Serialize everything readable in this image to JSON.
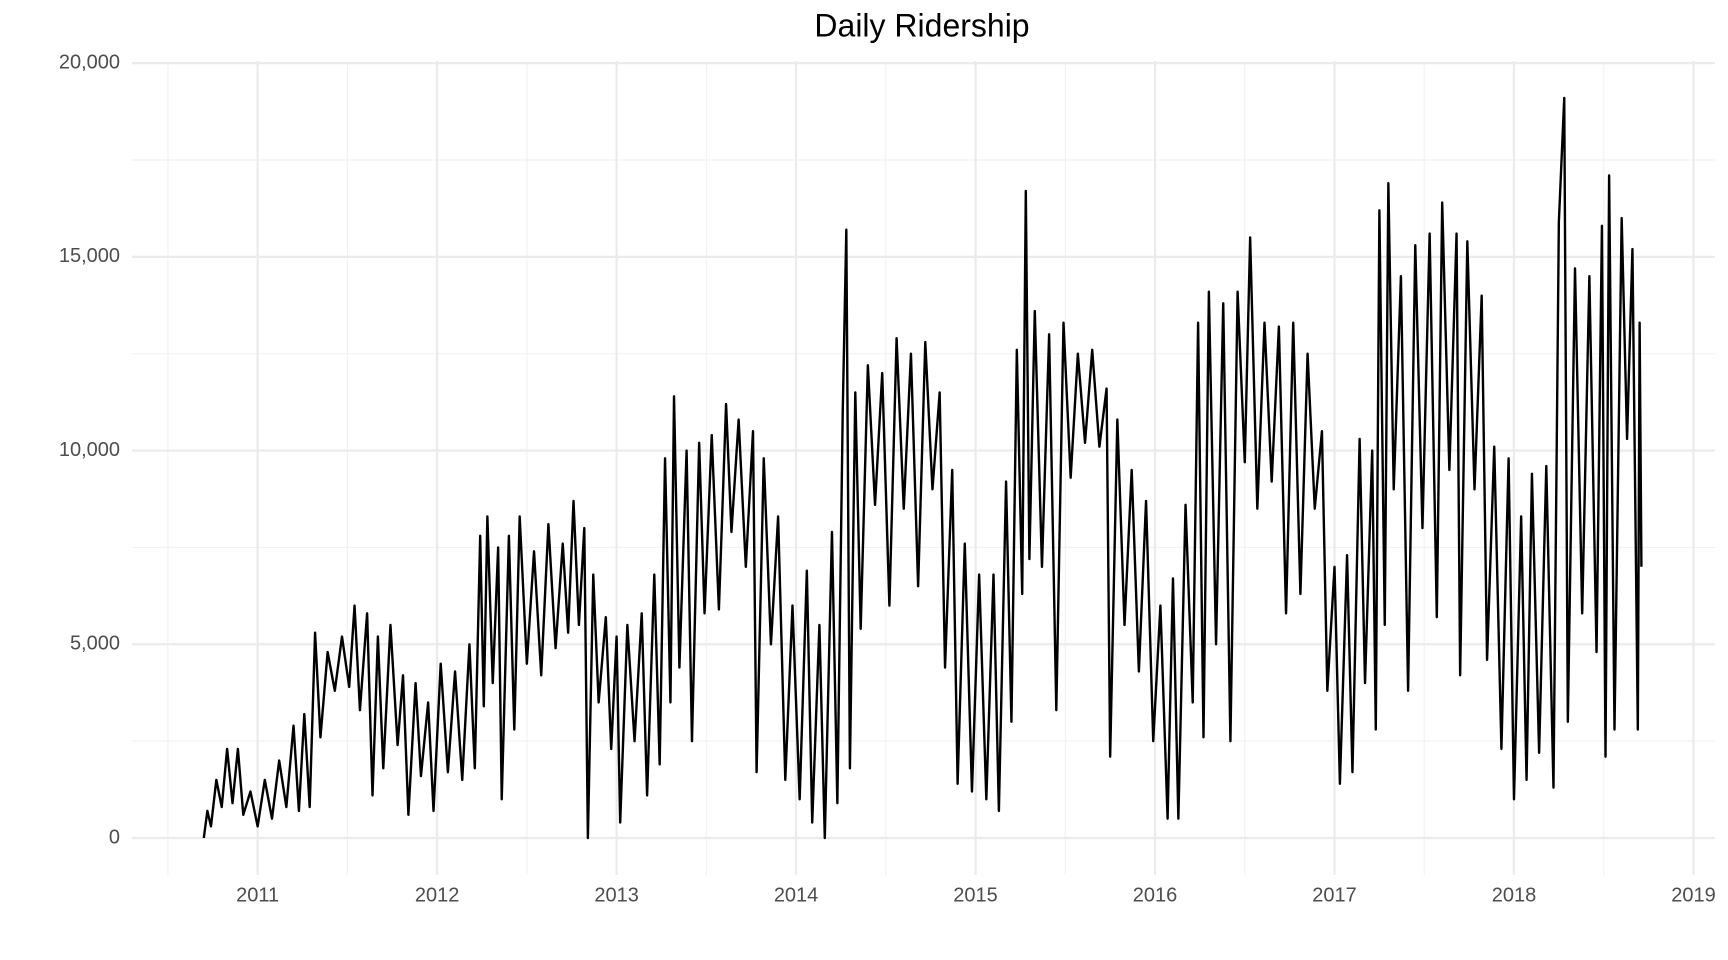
{
  "chart_data": {
    "type": "line",
    "title": "Daily Ridership",
    "color": "#000000",
    "grid": true,
    "xlim": [
      2010.3,
      2019.12
    ],
    "xticks": [
      2011,
      2012,
      2013,
      2014,
      2015,
      2016,
      2017,
      2018,
      2019
    ],
    "ylim": [
      -955,
      20055
    ],
    "yticks": [
      0,
      {
        "value": 5000,
        "label": "5,000"
      },
      {
        "value": 10000,
        "label": "10,000"
      },
      {
        "value": 15000,
        "label": "15,000"
      },
      {
        "value": 20000,
        "label": "20,000"
      }
    ],
    "x": [
      2010.7,
      2010.72,
      2010.74,
      2010.77,
      2010.8,
      2010.83,
      2010.86,
      2010.89,
      2010.92,
      2010.96,
      2011.0,
      2011.04,
      2011.08,
      2011.12,
      2011.16,
      2011.2,
      2011.23,
      2011.26,
      2011.29,
      2011.32,
      2011.35,
      2011.39,
      2011.43,
      2011.47,
      2011.51,
      2011.54,
      2011.57,
      2011.61,
      2011.64,
      2011.67,
      2011.7,
      2011.74,
      2011.78,
      2011.81,
      2011.84,
      2011.88,
      2011.91,
      2011.95,
      2011.98,
      2012.02,
      2012.06,
      2012.1,
      2012.14,
      2012.18,
      2012.21,
      2012.24,
      2012.26,
      2012.28,
      2012.31,
      2012.34,
      2012.36,
      2012.4,
      2012.43,
      2012.46,
      2012.5,
      2012.54,
      2012.58,
      2012.62,
      2012.66,
      2012.7,
      2012.73,
      2012.76,
      2012.79,
      2012.82,
      2012.84,
      2012.87,
      2012.9,
      2012.94,
      2012.97,
      2013.0,
      2013.02,
      2013.06,
      2013.1,
      2013.14,
      2013.17,
      2013.21,
      2013.24,
      2013.27,
      2013.3,
      2013.32,
      2013.35,
      2013.39,
      2013.42,
      2013.46,
      2013.49,
      2013.53,
      2013.57,
      2013.61,
      2013.64,
      2013.68,
      2013.72,
      2013.76,
      2013.78,
      2013.82,
      2013.86,
      2013.9,
      2013.94,
      2013.98,
      2014.02,
      2014.06,
      2014.09,
      2014.13,
      2014.16,
      2014.2,
      2014.23,
      2014.26,
      2014.28,
      2014.3,
      2014.33,
      2014.36,
      2014.4,
      2014.44,
      2014.48,
      2014.52,
      2014.56,
      2014.6,
      2014.64,
      2014.68,
      2014.72,
      2014.76,
      2014.8,
      2014.83,
      2014.87,
      2014.9,
      2014.94,
      2014.98,
      2015.02,
      2015.06,
      2015.1,
      2015.13,
      2015.17,
      2015.2,
      2015.23,
      2015.26,
      2015.28,
      2015.3,
      2015.33,
      2015.37,
      2015.41,
      2015.45,
      2015.49,
      2015.53,
      2015.57,
      2015.61,
      2015.65,
      2015.69,
      2015.73,
      2015.75,
      2015.79,
      2015.83,
      2015.87,
      2015.91,
      2015.95,
      2015.99,
      2016.03,
      2016.07,
      2016.1,
      2016.13,
      2016.17,
      2016.21,
      2016.24,
      2016.27,
      2016.3,
      2016.34,
      2016.38,
      2016.42,
      2016.46,
      2016.5,
      2016.53,
      2016.57,
      2016.61,
      2016.65,
      2016.69,
      2016.73,
      2016.77,
      2016.81,
      2016.85,
      2016.89,
      2016.93,
      2016.96,
      2017.0,
      2017.03,
      2017.07,
      2017.1,
      2017.14,
      2017.17,
      2017.21,
      2017.23,
      2017.25,
      2017.28,
      2017.3,
      2017.33,
      2017.37,
      2017.41,
      2017.45,
      2017.49,
      2017.53,
      2017.57,
      2017.6,
      2017.64,
      2017.68,
      2017.7,
      2017.74,
      2017.78,
      2017.82,
      2017.85,
      2017.89,
      2017.93,
      2017.97,
      2018.0,
      2018.04,
      2018.07,
      2018.1,
      2018.14,
      2018.18,
      2018.22,
      2018.25,
      2018.28,
      2018.3,
      2018.34,
      2018.38,
      2018.42,
      2018.46,
      2018.49,
      2018.51,
      2018.53,
      2018.56,
      2018.6,
      2018.63,
      2018.66,
      2018.69,
      2018.7,
      2018.71
    ],
    "values": [
      0,
      700,
      300,
      1500,
      800,
      2300,
      900,
      2300,
      600,
      1200,
      300,
      1500,
      500,
      2000,
      800,
      2900,
      700,
      3200,
      800,
      5300,
      2600,
      4800,
      3800,
      5200,
      3900,
      6000,
      3300,
      5800,
      1100,
      5200,
      1800,
      5500,
      2400,
      4200,
      600,
      4000,
      1600,
      3500,
      700,
      4500,
      1700,
      4300,
      1500,
      5000,
      1800,
      7800,
      3400,
      8300,
      4000,
      7500,
      1000,
      7800,
      2800,
      8300,
      4500,
      7400,
      4200,
      8100,
      4900,
      7600,
      5300,
      8700,
      5500,
      8000,
      0,
      6800,
      3500,
      5700,
      2300,
      5200,
      400,
      5500,
      2500,
      5800,
      1100,
      6800,
      1900,
      9800,
      3500,
      11400,
      4400,
      10000,
      2500,
      10200,
      5800,
      10400,
      5900,
      11200,
      7900,
      10800,
      7000,
      10500,
      1700,
      9800,
      5000,
      8300,
      1500,
      6000,
      1000,
      6900,
      400,
      5500,
      0,
      7900,
      900,
      11000,
      15700,
      1800,
      11500,
      5400,
      12200,
      8600,
      12000,
      6000,
      12900,
      8500,
      12500,
      6500,
      12800,
      9000,
      11500,
      4400,
      9500,
      1400,
      7600,
      1200,
      6800,
      1000,
      6800,
      700,
      9200,
      3000,
      12600,
      6300,
      16700,
      7200,
      13600,
      7000,
      13000,
      3300,
      13300,
      9300,
      12500,
      10200,
      12600,
      10100,
      11600,
      2100,
      10800,
      5500,
      9500,
      4300,
      8700,
      2500,
      6000,
      500,
      6700,
      500,
      8600,
      3500,
      13300,
      2600,
      14100,
      5000,
      13800,
      2500,
      14100,
      9700,
      15500,
      8500,
      13300,
      9200,
      13200,
      5800,
      13300,
      6300,
      12500,
      8500,
      10500,
      3800,
      7000,
      1400,
      7300,
      1700,
      10300,
      4000,
      10000,
      2800,
      16200,
      5500,
      16900,
      9000,
      14500,
      3800,
      15300,
      8000,
      15600,
      5700,
      16400,
      9500,
      15600,
      4200,
      15400,
      9000,
      14000,
      4600,
      10100,
      2300,
      9800,
      1000,
      8300,
      1500,
      9400,
      2200,
      9600,
      1300,
      15900,
      19100,
      3000,
      14700,
      5800,
      14500,
      4800,
      15800,
      2100,
      17100,
      2800,
      16000,
      10300,
      15200,
      2800,
      13300,
      7000
    ]
  }
}
